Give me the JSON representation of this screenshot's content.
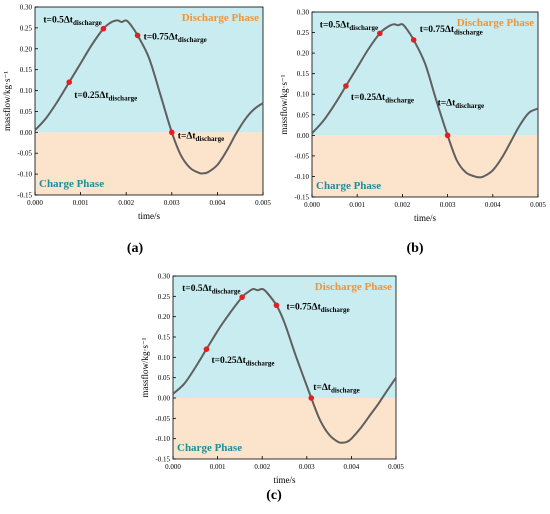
{
  "colors": {
    "discharge_bg": "#c8ecef",
    "charge_bg": "#fbe3cc",
    "curve": "#5f5f5f",
    "marker": "#e32020",
    "discharge_label": "#f0953a",
    "charge_label": "#1e8e9a",
    "axis": "#000000"
  },
  "chart_data": [
    {
      "type": "line",
      "panel_label": "(a)",
      "xlabel": "time/s",
      "ylabel": "massflow/kg·s⁻¹",
      "xlim": [
        0,
        0.005
      ],
      "ylim": [
        -0.15,
        0.3
      ],
      "x_ticks": [
        "0.000",
        "0.001",
        "0.002",
        "0.003",
        "0.004",
        "0.005"
      ],
      "y_ticks": [
        "-0.15",
        "-0.10",
        "-0.05",
        "0.00",
        "0.05",
        "0.10",
        "0.15",
        "0.20",
        "0.25",
        "0.30"
      ],
      "regions": {
        "discharge": "Discharge Phase",
        "charge": "Charge Phase"
      },
      "series": [
        {
          "x": [
            0,
            0.00025,
            0.0005,
            0.00075,
            0.001,
            0.00125,
            0.0015,
            0.00165,
            0.0018,
            0.0019,
            0.002,
            0.0021,
            0.00225,
            0.0025,
            0.00275,
            0.003,
            0.0032,
            0.0034,
            0.0036,
            0.0037,
            0.0038,
            0.004,
            0.0042,
            0.0044,
            0.0046,
            0.0048,
            0.005
          ],
          "y": [
            0.005,
            0.035,
            0.075,
            0.12,
            0.165,
            0.21,
            0.248,
            0.262,
            0.268,
            0.264,
            0.268,
            0.257,
            0.232,
            0.178,
            0.09,
            0.0,
            -0.055,
            -0.085,
            -0.097,
            -0.098,
            -0.095,
            -0.078,
            -0.045,
            -0.005,
            0.03,
            0.055,
            0.07
          ]
        }
      ],
      "markers": [
        {
          "x": 0.00075,
          "y": 0.12,
          "label": "t=0.25Δt",
          "sub": "discharge"
        },
        {
          "x": 0.0015,
          "y": 0.248,
          "label": "t=0.5Δt",
          "sub": "discharge"
        },
        {
          "x": 0.00225,
          "y": 0.232,
          "label": "t=0.75Δt",
          "sub": "discharge"
        },
        {
          "x": 0.003,
          "y": 0.0,
          "label": "t=Δt",
          "sub": "discharge"
        }
      ]
    },
    {
      "type": "line",
      "panel_label": "(b)",
      "xlabel": "time/s",
      "ylabel": "massflow/kg·s⁻¹",
      "xlim": [
        0,
        0.005
      ],
      "ylim": [
        -0.15,
        0.3
      ],
      "x_ticks": [
        "0.000",
        "0.001",
        "0.002",
        "0.003",
        "0.004",
        "0.005"
      ],
      "y_ticks": [
        "-0.15",
        "-0.10",
        "-0.05",
        "0.00",
        "0.05",
        "0.10",
        "0.15",
        "0.20",
        "0.25",
        "0.30"
      ],
      "regions": {
        "discharge": "Discharge Phase",
        "charge": "Charge Phase"
      },
      "series": [
        {
          "x": [
            0,
            0.00025,
            0.0005,
            0.00075,
            0.001,
            0.00125,
            0.0015,
            0.00165,
            0.0018,
            0.0019,
            0.002,
            0.0021,
            0.00225,
            0.0025,
            0.00275,
            0.003,
            0.0032,
            0.0034,
            0.0036,
            0.0037,
            0.0038,
            0.004,
            0.0042,
            0.0044,
            0.0046,
            0.0048,
            0.005
          ],
          "y": [
            0.005,
            0.035,
            0.075,
            0.12,
            0.165,
            0.21,
            0.248,
            0.262,
            0.27,
            0.268,
            0.27,
            0.258,
            0.232,
            0.175,
            0.085,
            0.0,
            -0.06,
            -0.09,
            -0.1,
            -0.102,
            -0.1,
            -0.085,
            -0.055,
            -0.015,
            0.025,
            0.055,
            0.065
          ]
        }
      ],
      "markers": [
        {
          "x": 0.00075,
          "y": 0.12,
          "label": "t=0.25Δt",
          "sub": "discharge"
        },
        {
          "x": 0.0015,
          "y": 0.248,
          "label": "t=0.5Δt",
          "sub": "discharge"
        },
        {
          "x": 0.00225,
          "y": 0.232,
          "label": "t=0.75Δt",
          "sub": "discharge"
        },
        {
          "x": 0.003,
          "y": 0.0,
          "label": "t=Δt",
          "sub": "discharge"
        }
      ]
    },
    {
      "type": "line",
      "panel_label": "(c)",
      "xlabel": "time/s",
      "ylabel": "massflow/kg·s⁻¹",
      "xlim": [
        0,
        0.005
      ],
      "ylim": [
        -0.15,
        0.3
      ],
      "x_ticks": [
        "0.000",
        "0.001",
        "0.002",
        "0.003",
        "0.004",
        "0.005"
      ],
      "y_ticks": [
        "-0.15",
        "-0.10",
        "-0.05",
        "0.00",
        "0.05",
        "0.10",
        "0.15",
        "0.20",
        "0.25",
        "0.30"
      ],
      "regions": {
        "discharge": "Discharge Phase",
        "charge": "Charge Phase"
      },
      "series": [
        {
          "x": [
            0,
            0.00025,
            0.0005,
            0.00075,
            0.001,
            0.00125,
            0.00155,
            0.0017,
            0.0018,
            0.0019,
            0.002,
            0.0021,
            0.00232,
            0.0025,
            0.00275,
            0.0031,
            0.0033,
            0.0035,
            0.0037,
            0.0038,
            0.0039,
            0.004,
            0.0042,
            0.0044,
            0.0046,
            0.0048,
            0.005
          ],
          "y": [
            0.01,
            0.035,
            0.075,
            0.12,
            0.165,
            0.205,
            0.248,
            0.262,
            0.268,
            0.265,
            0.268,
            0.26,
            0.228,
            0.185,
            0.105,
            0.0,
            -0.055,
            -0.09,
            -0.108,
            -0.11,
            -0.108,
            -0.1,
            -0.075,
            -0.045,
            -0.015,
            0.018,
            0.05
          ]
        }
      ],
      "markers": [
        {
          "x": 0.00075,
          "y": 0.12,
          "label": "t=0.25Δt",
          "sub": "discharge"
        },
        {
          "x": 0.00155,
          "y": 0.248,
          "label": "t=0.5Δt",
          "sub": "discharge"
        },
        {
          "x": 0.00232,
          "y": 0.228,
          "label": "t=0.75Δt",
          "sub": "discharge"
        },
        {
          "x": 0.0031,
          "y": 0.0,
          "label": "t=Δt",
          "sub": "discharge"
        }
      ]
    }
  ]
}
